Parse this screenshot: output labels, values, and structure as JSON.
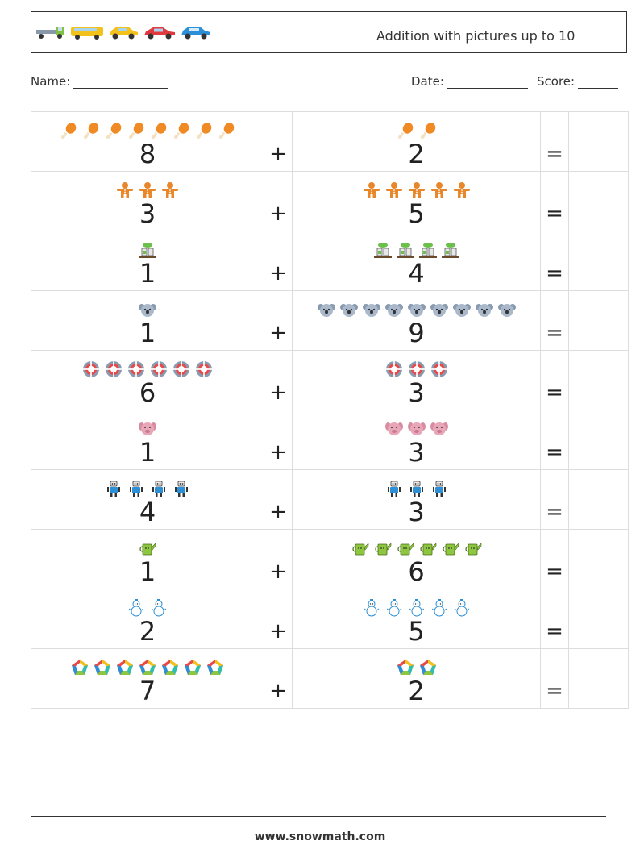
{
  "header": {
    "title": "Addition with pictures up to 10",
    "cars": [
      "truck-icon",
      "van-icon",
      "yellow-car-icon",
      "red-car-icon",
      "blue-car-icon"
    ]
  },
  "fields": {
    "name_label": "Name:",
    "date_label": "Date:",
    "score_label": "Score:"
  },
  "operators": {
    "plus": "+",
    "equals": "="
  },
  "problems": [
    {
      "left": 8,
      "right": 2,
      "icon": "chicken-leg-icon"
    },
    {
      "left": 3,
      "right": 5,
      "icon": "gingerbread-man-icon"
    },
    {
      "left": 1,
      "right": 4,
      "icon": "plant-pots-icon"
    },
    {
      "left": 1,
      "right": 9,
      "icon": "koala-icon"
    },
    {
      "left": 6,
      "right": 3,
      "icon": "lifebuoy-icon"
    },
    {
      "left": 1,
      "right": 3,
      "icon": "pig-face-icon"
    },
    {
      "left": 4,
      "right": 3,
      "icon": "robot-icon"
    },
    {
      "left": 1,
      "right": 6,
      "icon": "watering-can-icon"
    },
    {
      "left": 2,
      "right": 5,
      "icon": "snowman-icon"
    },
    {
      "left": 7,
      "right": 2,
      "icon": "pentagon-icon"
    }
  ],
  "footer": {
    "url": "www.snowmath.com"
  }
}
